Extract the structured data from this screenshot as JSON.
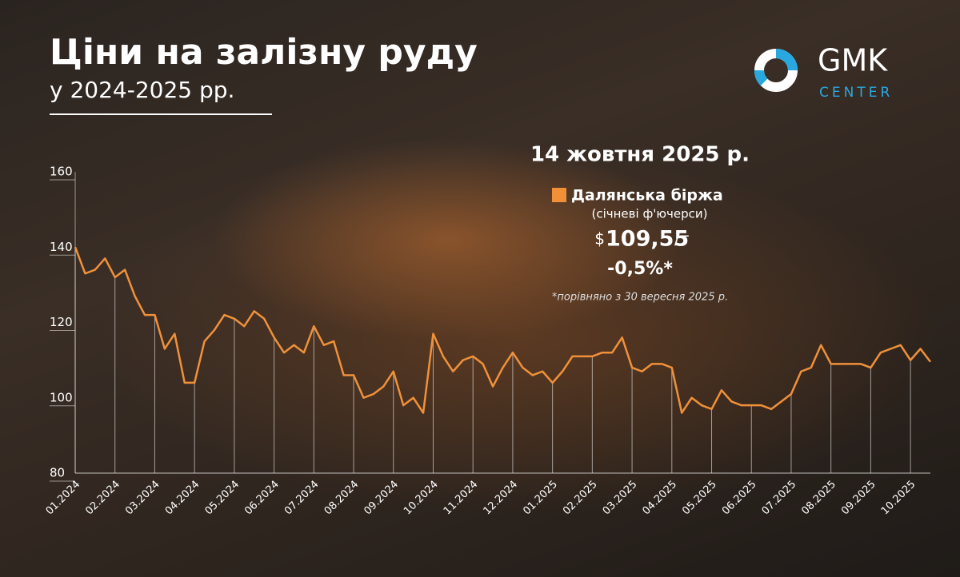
{
  "chart_data": {
    "type": "line",
    "title": "Ціни на залізну руду",
    "subtitle": "у 2024-2025 рр.",
    "logo": {
      "main": "GMK",
      "sub": "CENTER"
    },
    "annotation": {
      "date": "14 жовтня 2025 р.",
      "description": "(січневі ф'ючерси)",
      "price_prefix": "$",
      "price": "109,55",
      "price_unit": "/т",
      "change": "-0,5%*",
      "note": "*порівняно з 30 вересня 2025 р."
    },
    "categories": [
      "01.2024",
      null,
      null,
      null,
      "02.2024",
      null,
      null,
      null,
      "03.2024",
      null,
      null,
      null,
      "04.2024",
      null,
      null,
      null,
      "05.2024",
      null,
      null,
      null,
      "06.2024",
      null,
      null,
      null,
      "07.2024",
      null,
      null,
      null,
      "08.2024",
      null,
      null,
      null,
      "09.2024",
      null,
      null,
      null,
      "10.2024",
      null,
      null,
      null,
      "11.2024",
      null,
      null,
      null,
      "12.2024",
      null,
      null,
      null,
      "01.2025",
      null,
      null,
      null,
      "02.2025",
      null,
      null,
      null,
      "03.2025",
      null,
      null,
      null,
      "04.2025",
      null,
      null,
      null,
      "05.2025",
      null,
      null,
      null,
      "06.2025",
      null,
      null,
      null,
      "07.2025",
      null,
      null,
      null,
      "08.2025",
      null,
      null,
      null,
      "09.2025",
      null,
      null,
      null,
      "10.2025",
      null,
      null
    ],
    "series": [
      {
        "name": "Далянська біржа",
        "color": "#f0913a",
        "values": [
          140,
          133,
          134,
          137,
          132,
          134,
          127,
          122,
          122,
          113,
          117,
          104,
          104,
          115,
          118,
          122,
          121,
          119,
          123,
          121,
          116,
          112,
          114,
          112,
          119,
          114,
          115,
          106,
          106,
          100,
          101,
          103,
          107,
          98,
          100,
          96,
          117,
          111,
          107,
          110,
          111,
          109,
          103,
          108,
          112,
          108,
          106,
          107,
          104,
          107,
          111,
          111,
          111,
          112,
          112,
          116,
          108,
          107,
          109,
          109,
          108,
          96,
          100,
          98,
          97,
          102,
          99,
          98,
          98,
          98,
          97,
          99,
          101,
          107,
          108,
          114,
          109,
          109,
          109,
          109,
          108,
          112,
          113,
          114,
          110,
          113,
          109.55
        ]
      }
    ],
    "ylim": [
      80,
      160
    ],
    "yticks": [
      80,
      100,
      120,
      140,
      160
    ]
  }
}
